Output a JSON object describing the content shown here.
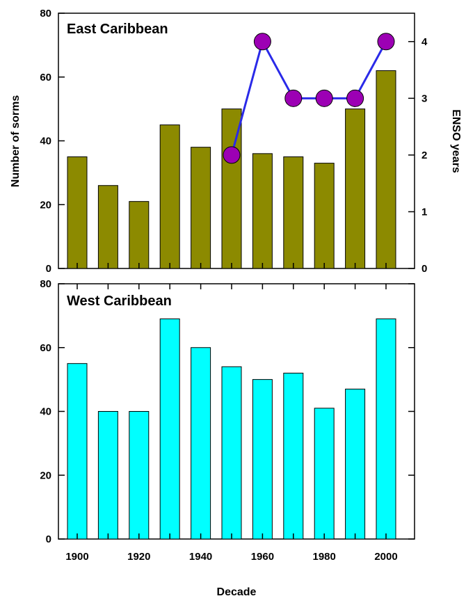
{
  "chart_data": [
    {
      "type": "bar",
      "title": "East Caribbean",
      "xlabel": "",
      "ylabel": "Number of sorms",
      "y2label": "ENSO years",
      "ylim": [
        0,
        80
      ],
      "y2lim": [
        0,
        4.5
      ],
      "yticks": [
        0,
        20,
        40,
        60,
        80
      ],
      "y2ticks": [
        0,
        1,
        2,
        3,
        4
      ],
      "categories": [
        1900,
        1910,
        1920,
        1930,
        1940,
        1950,
        1960,
        1970,
        1980,
        1990,
        2000
      ],
      "values": [
        35,
        26,
        21,
        45,
        38,
        50,
        36,
        35,
        33,
        50,
        62
      ],
      "bar_color": "#8c8a00",
      "enso": {
        "x": [
          1950,
          1960,
          1970,
          1980,
          1990,
          2000
        ],
        "values": [
          2,
          4,
          3,
          3,
          3,
          4
        ],
        "line_color": "#2a2ae8",
        "marker_color": "#9c00b4"
      }
    },
    {
      "type": "bar",
      "title": "West Caribbean",
      "xlabel": "Decade",
      "ylabel": "",
      "ylim": [
        0,
        80
      ],
      "yticks": [
        0,
        20,
        40,
        60,
        80
      ],
      "xticks": [
        1900,
        1920,
        1940,
        1960,
        1980,
        2000
      ],
      "categories": [
        1900,
        1910,
        1920,
        1930,
        1940,
        1950,
        1960,
        1970,
        1980,
        1990,
        2000
      ],
      "values": [
        55,
        40,
        40,
        69,
        60,
        54,
        50,
        52,
        41,
        47,
        69
      ],
      "bar_color": "#00ffff"
    }
  ]
}
